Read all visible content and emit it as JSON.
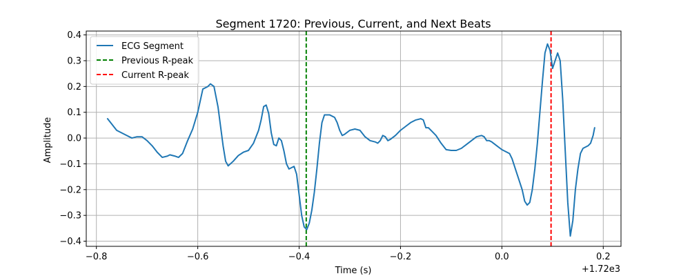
{
  "chart_data": {
    "type": "line",
    "title": "Segment 1720: Previous, Current, and Next Beats",
    "xlabel": "Time (s)",
    "ylabel": "Amplitude",
    "x_offset_label": "+1.72e3",
    "xlim": [
      -0.82,
      0.235
    ],
    "ylim": [
      -0.42,
      0.415
    ],
    "grid": true,
    "legend_position": "upper left",
    "x_ticks": [
      -0.8,
      -0.6,
      -0.4,
      -0.2,
      0.0,
      0.2
    ],
    "x_tick_labels": [
      "−0.8",
      "−0.6",
      "−0.4",
      "−0.2",
      "0.0",
      "0.2"
    ],
    "y_ticks": [
      -0.4,
      -0.3,
      -0.2,
      -0.1,
      0.0,
      0.1,
      0.2,
      0.3,
      0.4
    ],
    "y_tick_labels": [
      "−0.4",
      "−0.3",
      "−0.2",
      "−0.1",
      "0.0",
      "0.1",
      "0.2",
      "0.3",
      "0.4"
    ],
    "series": [
      {
        "name": "ECG Segment",
        "color": "#1f77b4",
        "style": "solid",
        "points": [
          [
            -0.778,
            0.075
          ],
          [
            -0.77,
            0.055
          ],
          [
            -0.76,
            0.03
          ],
          [
            -0.75,
            0.02
          ],
          [
            -0.74,
            0.01
          ],
          [
            -0.73,
            0.0
          ],
          [
            -0.72,
            0.005
          ],
          [
            -0.71,
            0.005
          ],
          [
            -0.7,
            -0.01
          ],
          [
            -0.69,
            -0.03
          ],
          [
            -0.68,
            -0.055
          ],
          [
            -0.67,
            -0.075
          ],
          [
            -0.66,
            -0.07
          ],
          [
            -0.655,
            -0.065
          ],
          [
            -0.645,
            -0.07
          ],
          [
            -0.638,
            -0.075
          ],
          [
            -0.63,
            -0.06
          ],
          [
            -0.62,
            -0.01
          ],
          [
            -0.61,
            0.035
          ],
          [
            -0.6,
            0.1
          ],
          [
            -0.59,
            0.19
          ],
          [
            -0.58,
            0.2
          ],
          [
            -0.575,
            0.21
          ],
          [
            -0.568,
            0.2
          ],
          [
            -0.56,
            0.12
          ],
          [
            -0.55,
            -0.03
          ],
          [
            -0.545,
            -0.09
          ],
          [
            -0.54,
            -0.108
          ],
          [
            -0.53,
            -0.09
          ],
          [
            -0.52,
            -0.068
          ],
          [
            -0.51,
            -0.055
          ],
          [
            -0.5,
            -0.048
          ],
          [
            -0.49,
            -0.02
          ],
          [
            -0.48,
            0.03
          ],
          [
            -0.475,
            0.07
          ],
          [
            -0.47,
            0.122
          ],
          [
            -0.465,
            0.128
          ],
          [
            -0.46,
            0.095
          ],
          [
            -0.455,
            0.02
          ],
          [
            -0.45,
            -0.025
          ],
          [
            -0.445,
            -0.03
          ],
          [
            -0.44,
            0.0
          ],
          [
            -0.435,
            -0.01
          ],
          [
            -0.43,
            -0.05
          ],
          [
            -0.425,
            -0.1
          ],
          [
            -0.42,
            -0.12
          ],
          [
            -0.41,
            -0.11
          ],
          [
            -0.405,
            -0.14
          ],
          [
            -0.4,
            -0.22
          ],
          [
            -0.395,
            -0.3
          ],
          [
            -0.39,
            -0.345
          ],
          [
            -0.385,
            -0.355
          ],
          [
            -0.38,
            -0.33
          ],
          [
            -0.375,
            -0.28
          ],
          [
            -0.37,
            -0.21
          ],
          [
            -0.365,
            -0.12
          ],
          [
            -0.36,
            -0.02
          ],
          [
            -0.355,
            0.06
          ],
          [
            -0.35,
            0.09
          ],
          [
            -0.34,
            0.09
          ],
          [
            -0.33,
            0.08
          ],
          [
            -0.325,
            0.06
          ],
          [
            -0.32,
            0.03
          ],
          [
            -0.315,
            0.01
          ],
          [
            -0.31,
            0.015
          ],
          [
            -0.3,
            0.03
          ],
          [
            -0.29,
            0.035
          ],
          [
            -0.28,
            0.03
          ],
          [
            -0.27,
            0.005
          ],
          [
            -0.26,
            -0.01
          ],
          [
            -0.25,
            -0.015
          ],
          [
            -0.245,
            -0.02
          ],
          [
            -0.24,
            -0.01
          ],
          [
            -0.235,
            0.01
          ],
          [
            -0.23,
            0.005
          ],
          [
            -0.225,
            -0.01
          ],
          [
            -0.22,
            -0.005
          ],
          [
            -0.21,
            0.01
          ],
          [
            -0.2,
            0.03
          ],
          [
            -0.19,
            0.045
          ],
          [
            -0.18,
            0.06
          ],
          [
            -0.17,
            0.07
          ],
          [
            -0.16,
            0.075
          ],
          [
            -0.155,
            0.07
          ],
          [
            -0.15,
            0.04
          ],
          [
            -0.145,
            0.04
          ],
          [
            -0.14,
            0.03
          ],
          [
            -0.13,
            0.01
          ],
          [
            -0.12,
            -0.02
          ],
          [
            -0.11,
            -0.045
          ],
          [
            -0.1,
            -0.048
          ],
          [
            -0.09,
            -0.048
          ],
          [
            -0.08,
            -0.04
          ],
          [
            -0.07,
            -0.025
          ],
          [
            -0.06,
            -0.01
          ],
          [
            -0.05,
            0.005
          ],
          [
            -0.04,
            0.01
          ],
          [
            -0.035,
            0.005
          ],
          [
            -0.03,
            -0.01
          ],
          [
            -0.025,
            -0.01
          ],
          [
            -0.02,
            -0.015
          ],
          [
            -0.01,
            -0.03
          ],
          [
            0.0,
            -0.045
          ],
          [
            0.005,
            -0.05
          ],
          [
            0.01,
            -0.055
          ],
          [
            0.015,
            -0.06
          ],
          [
            0.02,
            -0.08
          ],
          [
            0.03,
            -0.14
          ],
          [
            0.04,
            -0.2
          ],
          [
            0.045,
            -0.245
          ],
          [
            0.05,
            -0.26
          ],
          [
            0.055,
            -0.25
          ],
          [
            0.06,
            -0.2
          ],
          [
            0.065,
            -0.12
          ],
          [
            0.07,
            -0.02
          ],
          [
            0.075,
            0.1
          ],
          [
            0.08,
            0.22
          ],
          [
            0.085,
            0.33
          ],
          [
            0.09,
            0.365
          ],
          [
            0.095,
            0.34
          ],
          [
            0.1,
            0.27
          ],
          [
            0.105,
            0.3
          ],
          [
            0.11,
            0.33
          ],
          [
            0.115,
            0.3
          ],
          [
            0.12,
            0.15
          ],
          [
            0.125,
            -0.05
          ],
          [
            0.13,
            -0.25
          ],
          [
            0.135,
            -0.38
          ],
          [
            0.14,
            -0.32
          ],
          [
            0.145,
            -0.2
          ],
          [
            0.15,
            -0.12
          ],
          [
            0.155,
            -0.06
          ],
          [
            0.16,
            -0.04
          ],
          [
            0.165,
            -0.035
          ],
          [
            0.17,
            -0.03
          ],
          [
            0.175,
            -0.02
          ],
          [
            0.18,
            0.01
          ],
          [
            0.183,
            0.04
          ]
        ]
      },
      {
        "name": "Previous R-peak",
        "color": "#008000",
        "style": "dashed",
        "x_vertical": -0.386
      },
      {
        "name": "Current R-peak",
        "color": "#ff0000",
        "style": "dashed",
        "x_vertical": 0.097
      }
    ]
  }
}
